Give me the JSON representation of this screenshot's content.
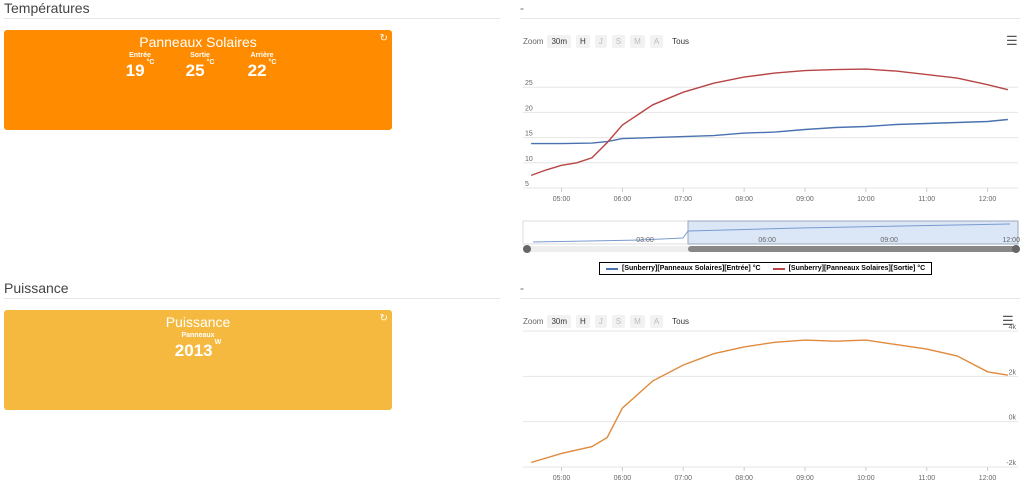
{
  "sections": [
    {
      "title": "Températures",
      "dash": "-"
    },
    {
      "title": "Puissance",
      "dash": "-"
    }
  ],
  "solar_widget": {
    "title": "Panneaux Solaires",
    "color": "#ff8c00",
    "icon": "refresh-icon",
    "values": [
      {
        "label": "Entrée",
        "value": "19",
        "unit": "°C"
      },
      {
        "label": "Sortie",
        "value": "25",
        "unit": "°C"
      },
      {
        "label": "Arrière",
        "value": "22",
        "unit": "°C"
      }
    ]
  },
  "power_widget": {
    "title": "Puissance",
    "color": "#f5b940",
    "icon": "refresh-icon",
    "value_label": "Panneaux",
    "value": "2013",
    "unit": "W"
  },
  "zoom": {
    "label": "Zoom",
    "buttons": [
      "30m",
      "H",
      "J",
      "S",
      "M",
      "A",
      "Tous"
    ],
    "disabled": [
      "J",
      "S",
      "M",
      "A"
    ]
  },
  "menu_icon": "hamburger-menu-icon",
  "chart_data": [
    {
      "type": "line",
      "x_ticks": [
        "05:00",
        "06:00",
        "07:00",
        "08:00",
        "09:00",
        "10:00",
        "11:00",
        "12:00"
      ],
      "y_ticks": [
        "5",
        "10",
        "15",
        "20",
        "25"
      ],
      "ylim": [
        5,
        30
      ],
      "legend_position": "bottom-center",
      "navigator_ticks": [
        "03:00",
        "06:00",
        "09:00",
        "12:00"
      ],
      "series": [
        {
          "name": "[Sunberry][Panneaux Solaires][Entrée] °C",
          "color": "#4a72b0",
          "x": [
            "04:30",
            "05:00",
            "05:30",
            "05:45",
            "06:00",
            "06:30",
            "07:00",
            "07:30",
            "08:00",
            "08:30",
            "09:00",
            "09:30",
            "10:00",
            "10:30",
            "11:00",
            "11:30",
            "12:00",
            "12:20"
          ],
          "values": [
            13.8,
            13.8,
            13.9,
            14.2,
            14.8,
            15.0,
            15.2,
            15.4,
            15.9,
            16.1,
            16.6,
            17.0,
            17.2,
            17.6,
            17.8,
            18.0,
            18.2,
            18.6
          ]
        },
        {
          "name": "[Sunberry][Panneaux Solaires][Sortie] °C",
          "color": "#b84444",
          "x": [
            "04:30",
            "04:45",
            "05:00",
            "05:15",
            "05:30",
            "05:45",
            "06:00",
            "06:30",
            "07:00",
            "07:30",
            "08:00",
            "08:30",
            "09:00",
            "09:30",
            "10:00",
            "10:30",
            "11:00",
            "11:30",
            "12:00",
            "12:20"
          ],
          "values": [
            7.5,
            8.6,
            9.5,
            10.0,
            11.0,
            14.0,
            17.5,
            21.5,
            24.0,
            25.8,
            27.0,
            27.8,
            28.3,
            28.5,
            28.6,
            28.2,
            27.5,
            26.8,
            25.5,
            24.5
          ]
        }
      ]
    },
    {
      "type": "line",
      "x_ticks": [
        "05:00",
        "06:00",
        "07:00",
        "08:00",
        "09:00",
        "10:00",
        "11:00",
        "12:00"
      ],
      "y_ticks": [
        "-2k",
        "0k",
        "2k",
        "4k"
      ],
      "ylim": [
        -2000,
        4000
      ],
      "series": [
        {
          "color": "#e08a3c",
          "x": [
            "04:30",
            "05:00",
            "05:30",
            "05:45",
            "06:00",
            "06:30",
            "07:00",
            "07:30",
            "08:00",
            "08:30",
            "09:00",
            "09:30",
            "10:00",
            "10:30",
            "11:00",
            "11:30",
            "12:00",
            "12:20"
          ],
          "values": [
            -1800,
            -1400,
            -1100,
            -700,
            600,
            1800,
            2500,
            3000,
            3300,
            3500,
            3600,
            3550,
            3600,
            3400,
            3200,
            2900,
            2200,
            2050
          ]
        }
      ]
    }
  ]
}
